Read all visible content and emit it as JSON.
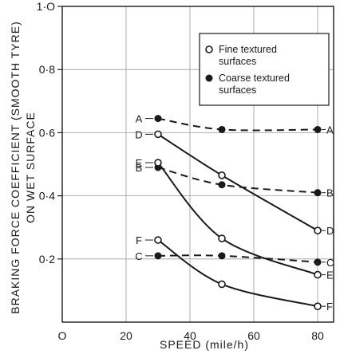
{
  "chart_data": {
    "type": "line",
    "xlabel": "SPEED  (mile/h)",
    "ylabel_line1": "BRAKING  FORCE  COEFFICIENT  (SMOOTH TYRE)",
    "ylabel_line2": "ON  WET  SURFACE",
    "xlim": [
      0,
      85
    ],
    "ylim": [
      0,
      1.0
    ],
    "x_ticks": [
      {
        "value": 0,
        "label": "O"
      },
      {
        "value": 20,
        "label": "20"
      },
      {
        "value": 40,
        "label": "40"
      },
      {
        "value": 60,
        "label": "60"
      },
      {
        "value": 80,
        "label": "80"
      }
    ],
    "y_ticks": [
      {
        "value": 0.2,
        "label": "0·2"
      },
      {
        "value": 0.4,
        "label": "0·4"
      },
      {
        "value": 0.6,
        "label": "0·6"
      },
      {
        "value": 0.8,
        "label": "0·8"
      },
      {
        "value": 1.0,
        "label": "1·O"
      }
    ],
    "grid": true,
    "legend": {
      "position": "top-right",
      "entries": [
        {
          "marker": "open",
          "text_line1": "Fine textured",
          "text_line2": "surfaces"
        },
        {
          "marker": "filled",
          "text_line1": "Coarse textured",
          "text_line2": "surfaces"
        }
      ]
    },
    "series": [
      {
        "name": "A",
        "style": "coarse",
        "x": [
          30,
          50,
          80
        ],
        "y": [
          0.645,
          0.61,
          0.61
        ],
        "label_start": "A",
        "label_end": "A"
      },
      {
        "name": "B",
        "style": "coarse",
        "x": [
          30,
          50,
          80
        ],
        "y": [
          0.49,
          0.435,
          0.41
        ],
        "label_start": "B",
        "label_end": "B"
      },
      {
        "name": "C",
        "style": "coarse",
        "x": [
          30,
          50,
          80
        ],
        "y": [
          0.21,
          0.21,
          0.19
        ],
        "label_start": "C",
        "label_end": "C"
      },
      {
        "name": "D",
        "style": "fine",
        "x": [
          30,
          50,
          80
        ],
        "y": [
          0.595,
          0.465,
          0.29
        ],
        "label_start": "D",
        "label_end": "D"
      },
      {
        "name": "E",
        "style": "fine",
        "x": [
          30,
          50,
          80
        ],
        "y": [
          0.505,
          0.265,
          0.15
        ],
        "label_start": "E",
        "label_end": "E"
      },
      {
        "name": "F",
        "style": "fine",
        "x": [
          30,
          50,
          80
        ],
        "y": [
          0.26,
          0.12,
          0.05
        ],
        "label_start": "F",
        "label_end": "F"
      }
    ]
  }
}
